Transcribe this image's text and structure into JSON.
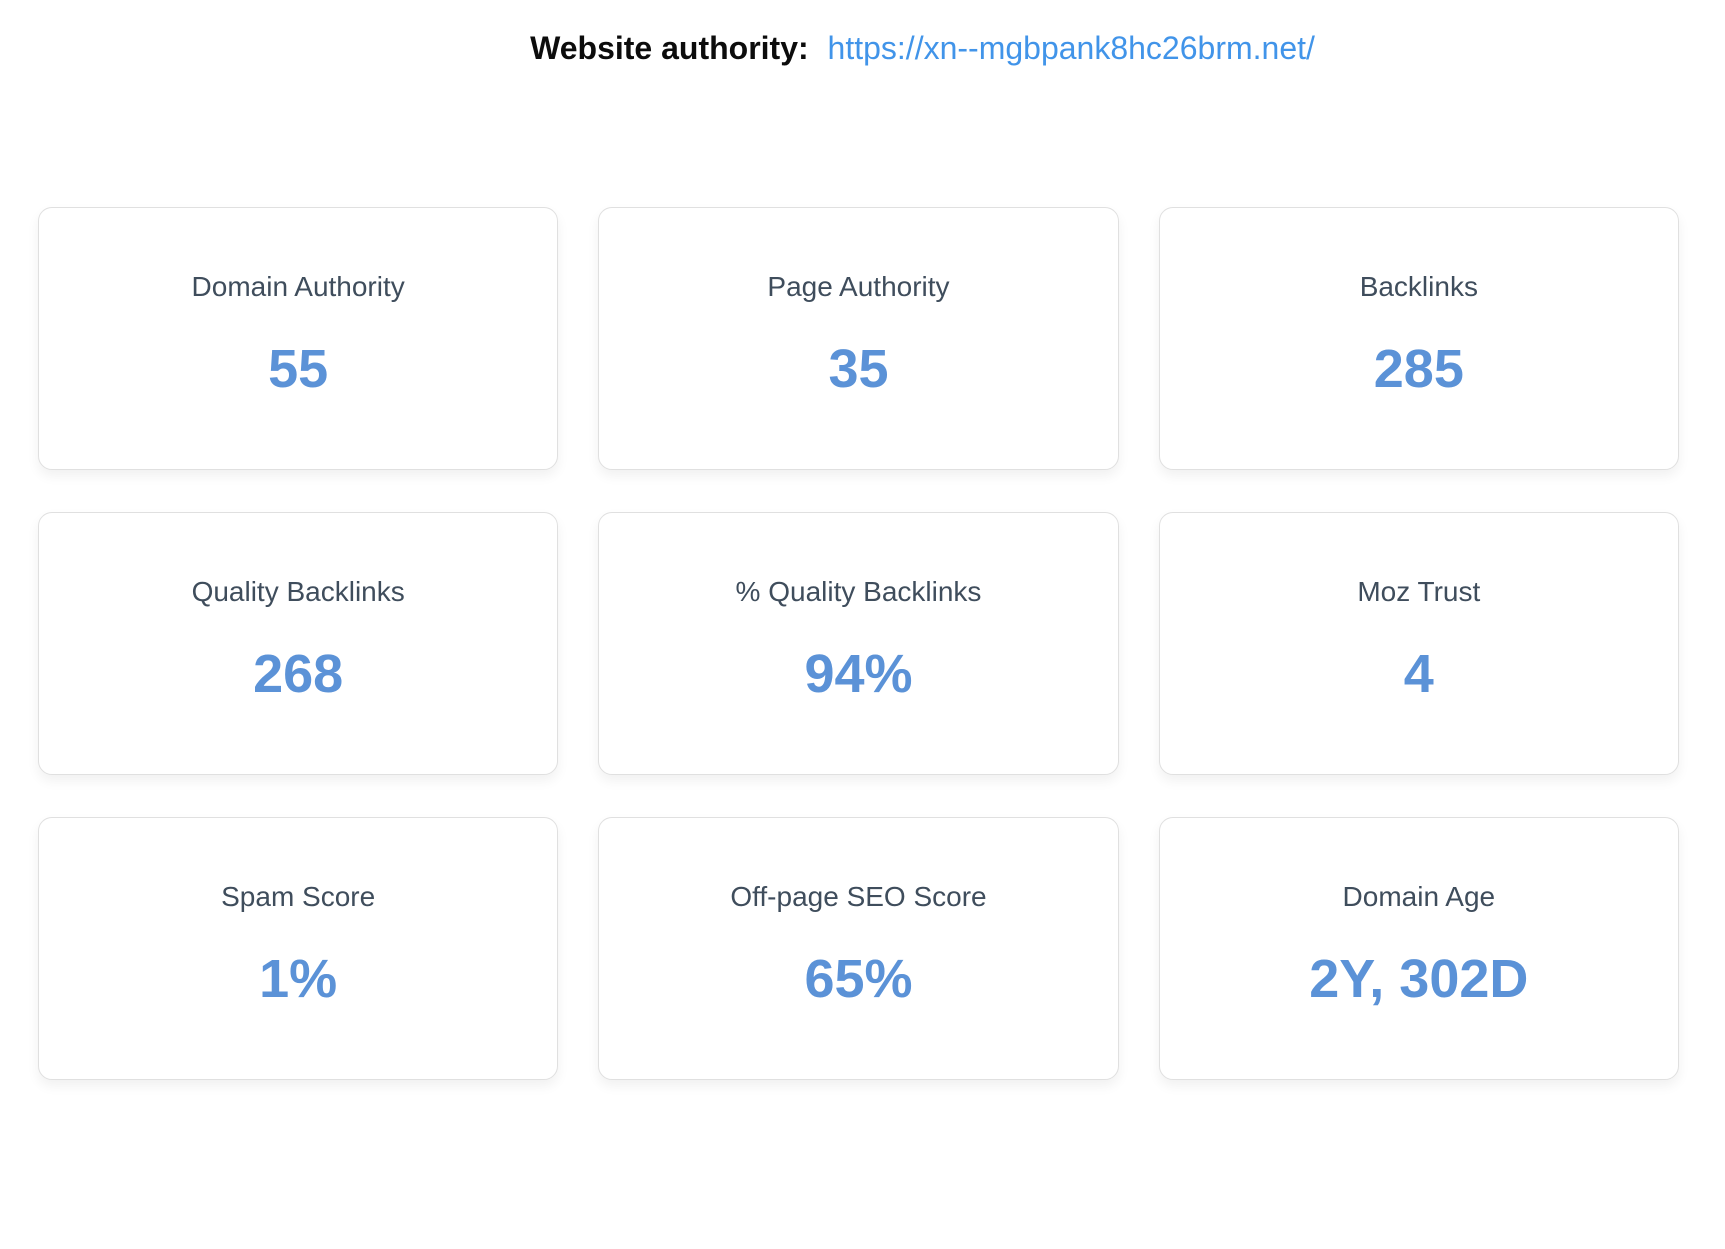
{
  "header": {
    "label": "Website authority:",
    "url": "https://xn--mgbpank8hc26brm.net/"
  },
  "colors": {
    "value_blue": "#5b92d7",
    "link_blue": "#4194e9",
    "label_slate": "#3f4d5c",
    "card_border": "#e0e0e0"
  },
  "cards": [
    {
      "label": "Domain Authority",
      "value": "55"
    },
    {
      "label": "Page Authority",
      "value": "35"
    },
    {
      "label": "Backlinks",
      "value": "285"
    },
    {
      "label": "Quality Backlinks",
      "value": "268"
    },
    {
      "label": "% Quality Backlinks",
      "value": "94%"
    },
    {
      "label": "Moz Trust",
      "value": "4"
    },
    {
      "label": "Spam Score",
      "value": "1%"
    },
    {
      "label": "Off-page SEO Score",
      "value": "65%"
    },
    {
      "label": "Domain Age",
      "value": "2Y, 302D"
    }
  ]
}
